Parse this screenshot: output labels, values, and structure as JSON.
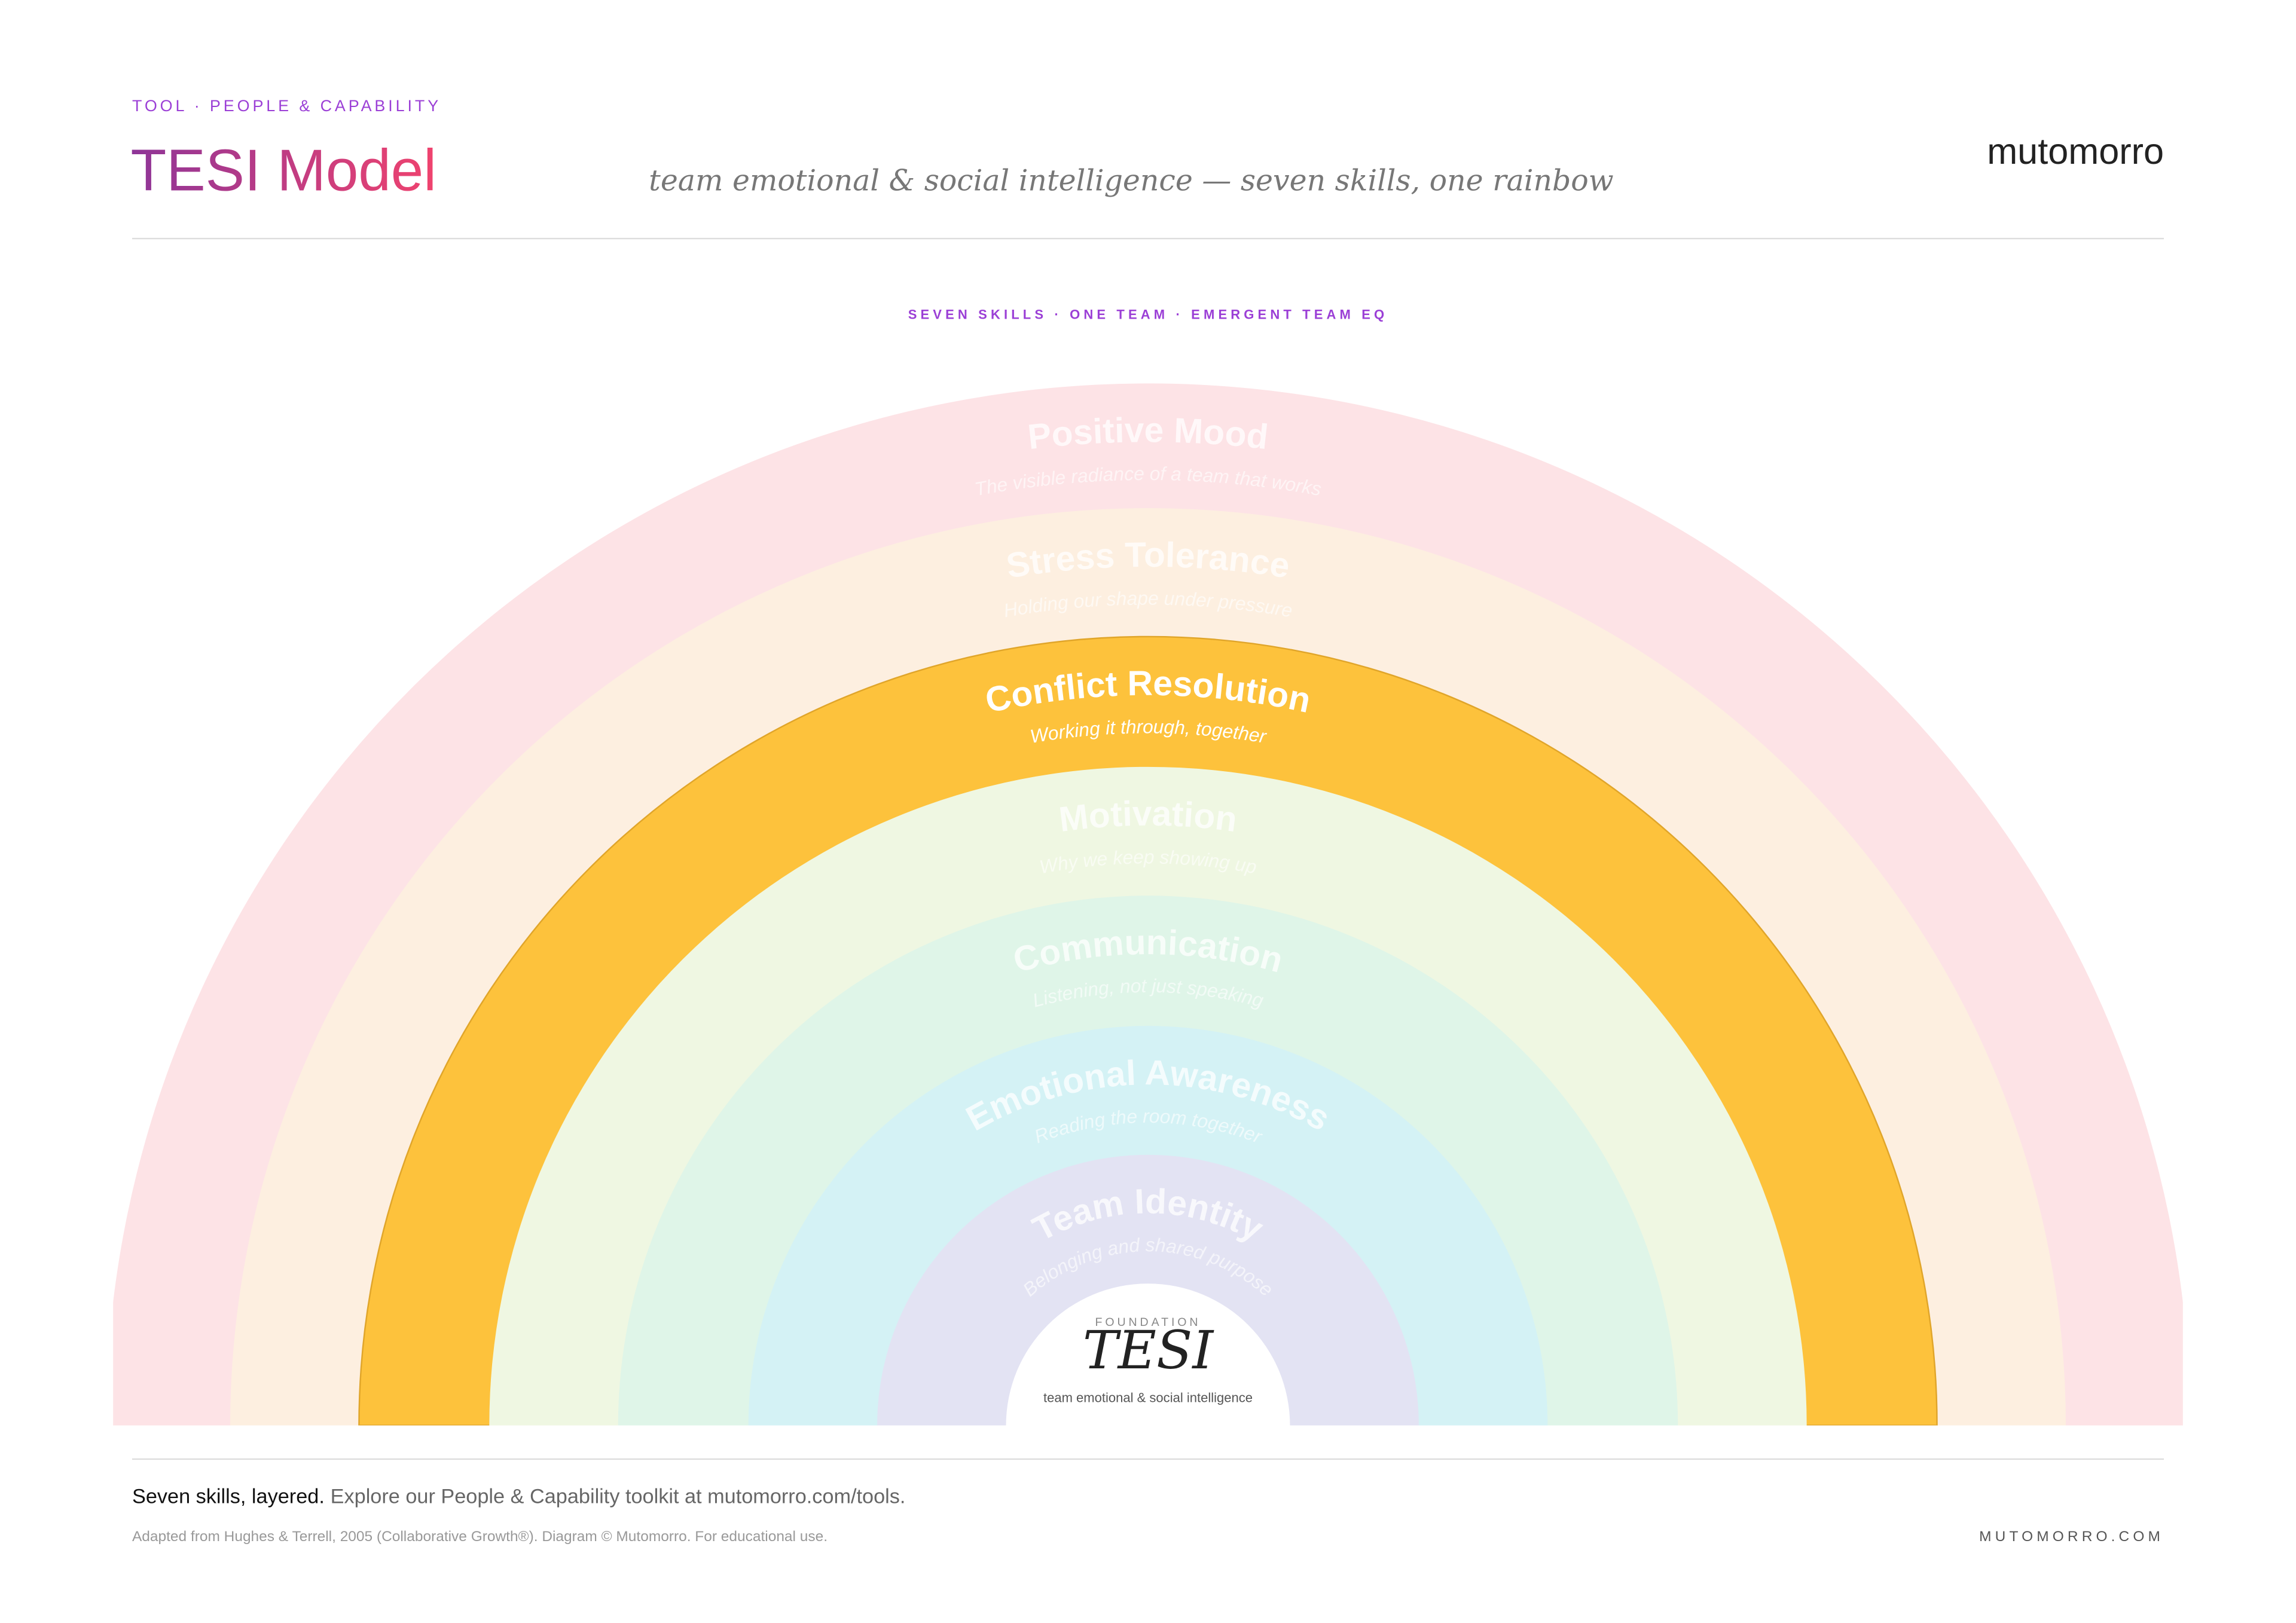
{
  "header": {
    "eyebrow": "TOOL · PEOPLE & CAPABILITY",
    "title": "TESI Model",
    "subtitle": "team emotional & social intelligence — seven skills, one rainbow",
    "brand": "mutomorro"
  },
  "diagram": {
    "caption": "SEVEN SKILLS · ONE TEAM · EMERGENT TEAM EQ",
    "layers": [
      {
        "name": "Positive Mood",
        "description": "The visible radiance of a team that works"
      },
      {
        "name": "Stress Tolerance",
        "description": "Holding our shape under pressure"
      },
      {
        "name": "Conflict Resolution",
        "description": "Working it through, together"
      },
      {
        "name": "Motivation",
        "description": "Why we keep showing up"
      },
      {
        "name": "Communication",
        "description": "Listening, not just speaking"
      },
      {
        "name": "Emotional Awareness",
        "description": "Reading the room together"
      },
      {
        "name": "Team Identity",
        "description": "Belonging and shared purpose"
      }
    ],
    "center": {
      "eyebrow": "FOUNDATION",
      "title": "TESI",
      "subtitle": "team emotional & social intelligence"
    }
  },
  "footer": {
    "lead": "Seven skills, layered.",
    "text": "Explore our People & Capability toolkit at mutomorro.com/tools.",
    "credit": "Adapted from Hughes & Terrell, 2005 (Collaborative Growth®). Diagram © Mutomorro. For educational use.",
    "url": "MUTOMORRO.COM"
  }
}
